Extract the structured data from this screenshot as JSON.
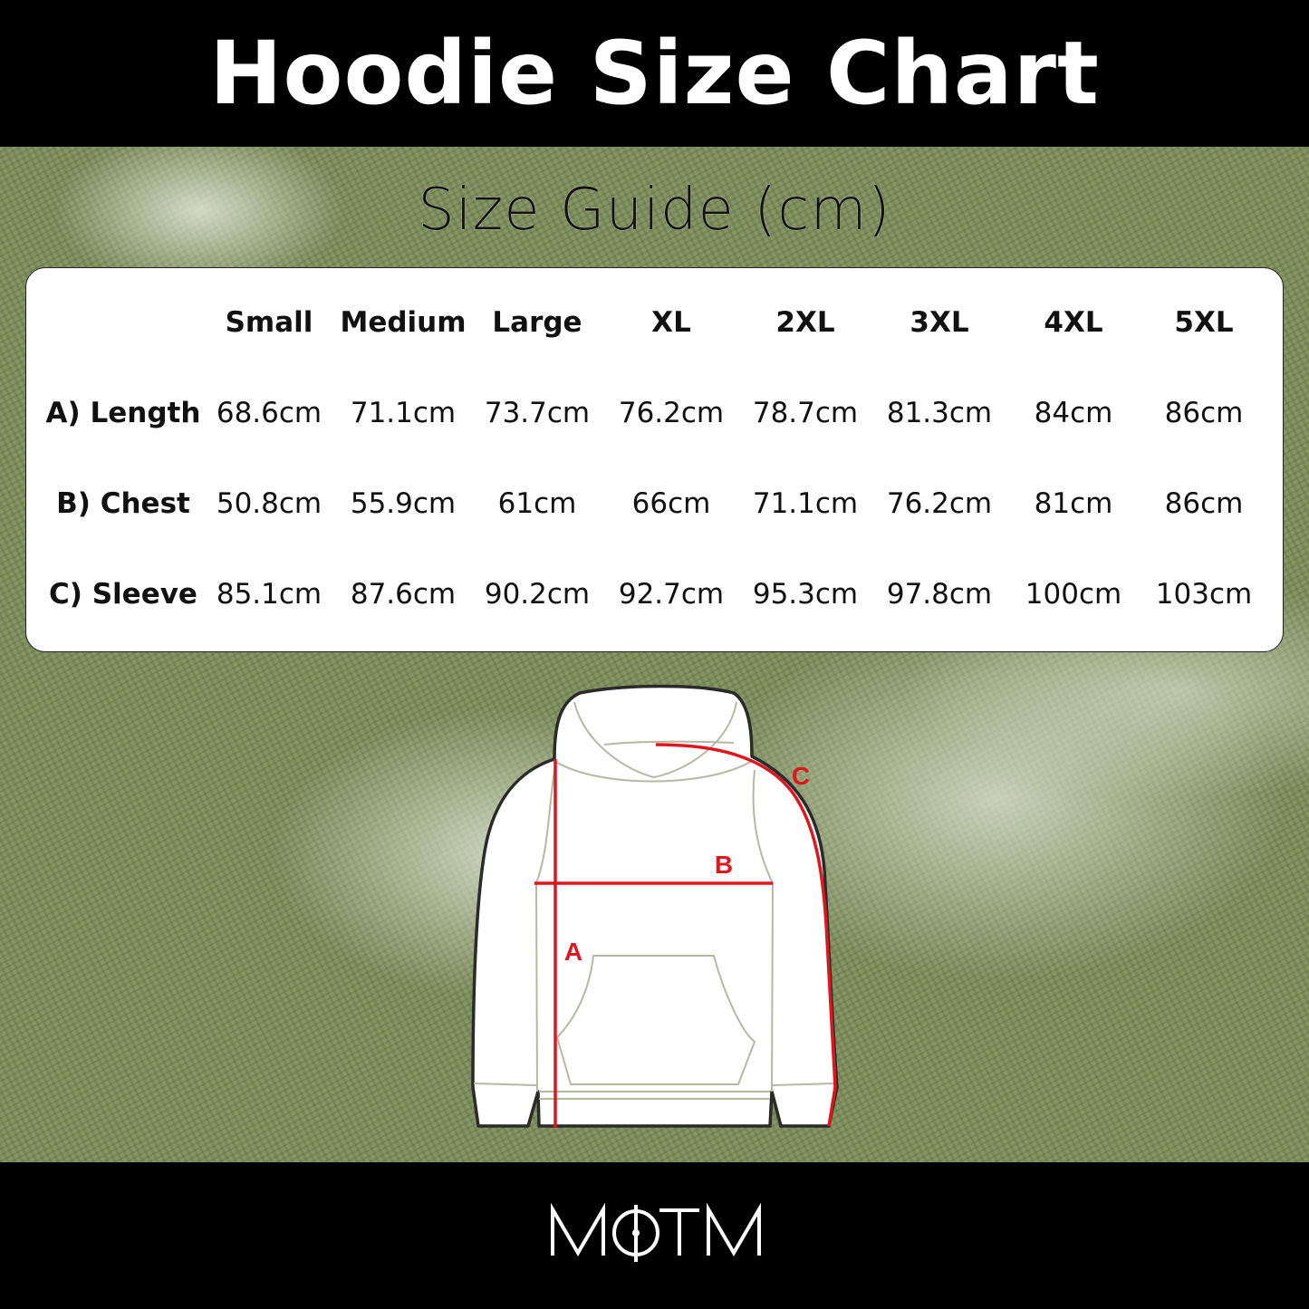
{
  "header": {
    "title": "Hoodie Size Chart"
  },
  "subtitle": "Size Guide (cm)",
  "table": {
    "columns": [
      "Small",
      "Medium",
      "Large",
      "XL",
      "2XL",
      "3XL",
      "4XL",
      "5XL"
    ],
    "rows": [
      {
        "label": "A) Length",
        "values": [
          "68.6cm",
          "71.1cm",
          "73.7cm",
          "76.2cm",
          "78.7cm",
          "81.3cm",
          "84cm",
          "86cm"
        ]
      },
      {
        "label": "B) Chest",
        "values": [
          "50.8cm",
          "55.9cm",
          "61cm",
          "66cm",
          "71.1cm",
          "76.2cm",
          "81cm",
          "86cm"
        ]
      },
      {
        "label": "C) Sleeve",
        "values": [
          "85.1cm",
          "87.6cm",
          "90.2cm",
          "92.7cm",
          "95.3cm",
          "97.8cm",
          "100cm",
          "103cm"
        ]
      }
    ]
  },
  "diagram": {
    "labels": {
      "length": "A",
      "chest": "B",
      "sleeve": "C"
    },
    "measure_color": "#e0161e"
  },
  "footer": {
    "logo": "MOTM"
  }
}
